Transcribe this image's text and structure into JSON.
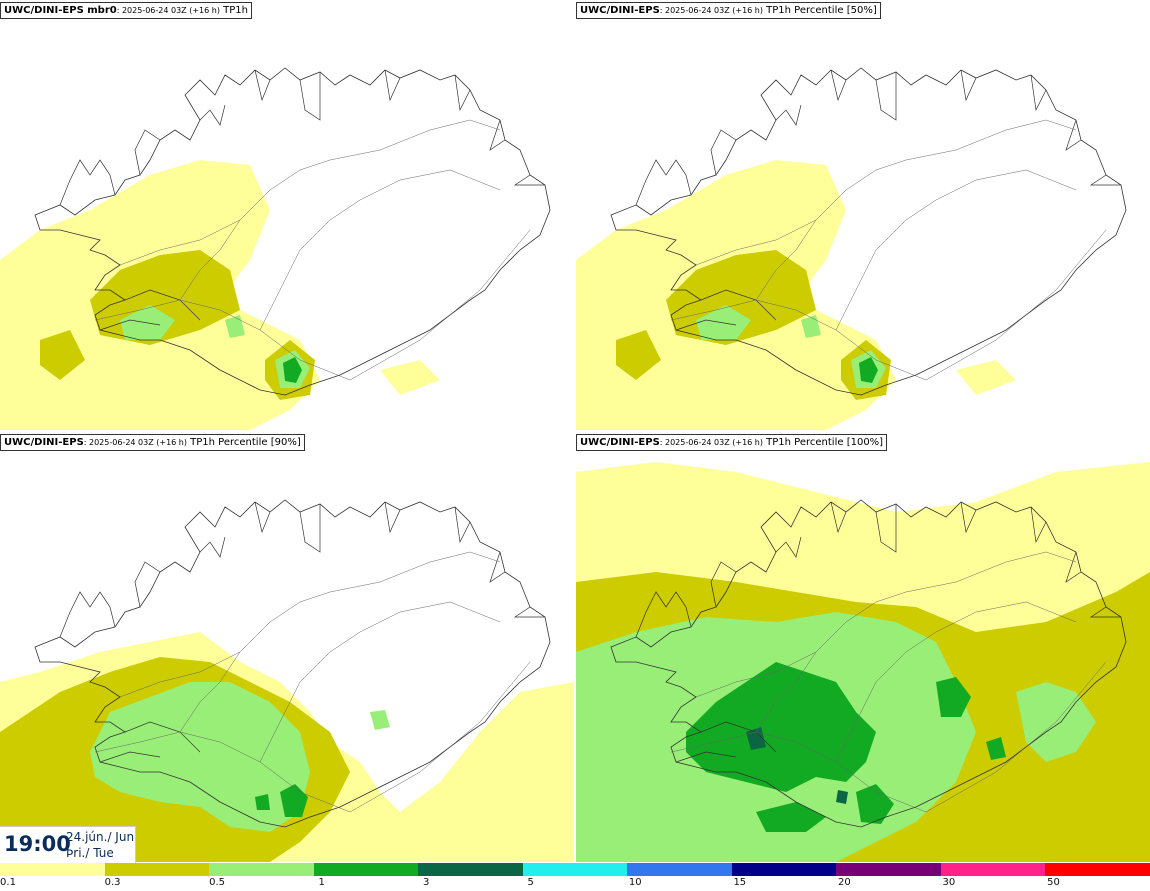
{
  "panels": [
    {
      "model": "UWC/DINI-EPS mbr0",
      "run": ": 2025-06-24 03Z (+16 h)",
      "field": " TP1h",
      "intensity": 1
    },
    {
      "model": "UWC/DINI-EPS",
      "run": ": 2025-06-24 03Z (+16 h)",
      "field": " TP1h Percentile [50%]",
      "intensity": 1
    },
    {
      "model": "UWC/DINI-EPS",
      "run": ": 2025-06-24 03Z (+16 h)",
      "field": " TP1h Percentile [90%]",
      "intensity": 2
    },
    {
      "model": "UWC/DINI-EPS",
      "run": ": 2025-06-24 03Z (+16 h)",
      "field": " TP1h Percentile [100%]",
      "intensity": 3
    }
  ],
  "valid_time": {
    "time": "19:00",
    "date": "24.jún./ Jun",
    "weekday": "Þri./ Tue"
  },
  "colorbar": {
    "colors": [
      "#ffff99",
      "#cccc00",
      "#99ee77",
      "#11aa22",
      "#0a6644",
      "#22eeee",
      "#3377ee",
      "#000088",
      "#770077",
      "#ff2288",
      "#ff0000"
    ],
    "ticks": [
      "0.1",
      "0.3",
      "0.5",
      "1",
      "3",
      "5",
      "10",
      "15",
      "20",
      "30",
      "50"
    ]
  }
}
